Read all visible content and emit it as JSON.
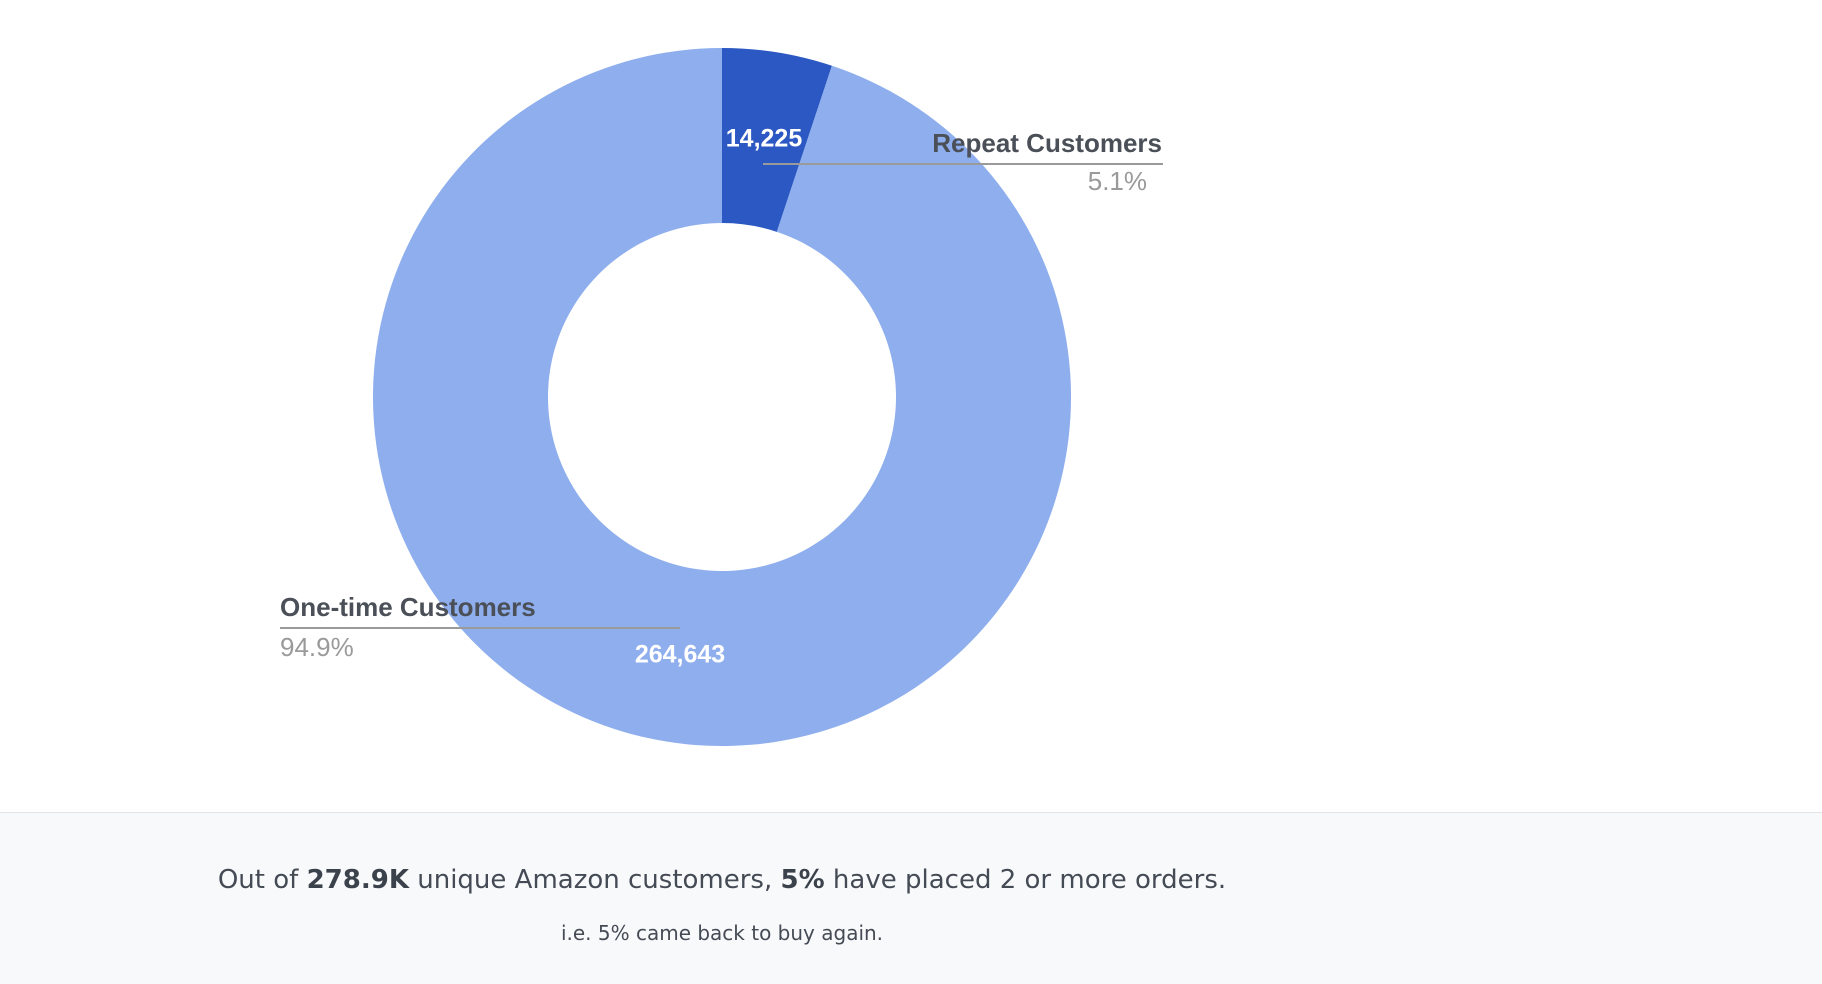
{
  "chart_data": {
    "type": "pie",
    "categories": [
      "Repeat Customers",
      "One-time Customers"
    ],
    "values": [
      14225,
      264643
    ],
    "value_labels": [
      "14,225",
      "264,643"
    ],
    "percent_labels": [
      "5.1%",
      "94.9%"
    ],
    "colors": [
      "#2b58c2",
      "#8eaeed"
    ],
    "donut": true
  },
  "summary": {
    "parts": [
      "Out of ",
      "278.9K",
      " unique Amazon customers, ",
      "5%",
      " have placed 2 or more orders."
    ],
    "note": "i.e. 5% came back to buy again."
  }
}
